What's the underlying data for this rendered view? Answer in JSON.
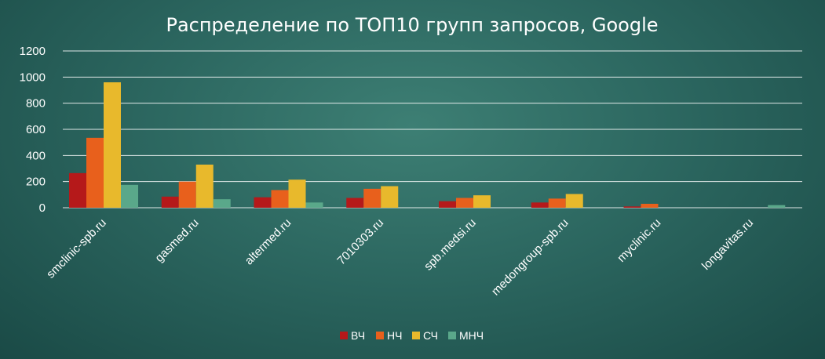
{
  "chart_data": {
    "type": "bar",
    "title": "Распределение по ТОП10 групп запросов, Google",
    "categories": [
      "smclinic-spb.ru",
      "gasmed.ru",
      "altermed.ru",
      "7010303.ru",
      "spb.medsi.ru",
      "medongroup-spb.ru",
      "myclinic.ru",
      "longavitas.ru"
    ],
    "series": [
      {
        "name": "ВЧ",
        "color": "#b5191a",
        "values": [
          265,
          85,
          80,
          75,
          50,
          40,
          10,
          0
        ]
      },
      {
        "name": "НЧ",
        "color": "#e8601c",
        "values": [
          535,
          200,
          135,
          145,
          75,
          70,
          30,
          0
        ]
      },
      {
        "name": "СЧ",
        "color": "#e8b92c",
        "values": [
          960,
          330,
          215,
          165,
          95,
          105,
          0,
          0
        ]
      },
      {
        "name": "МНЧ",
        "color": "#5aa88a",
        "values": [
          175,
          65,
          40,
          0,
          0,
          0,
          0,
          20
        ]
      }
    ],
    "yticks": [
      "0",
      "200",
      "400",
      "600",
      "800",
      "1000",
      "1200"
    ],
    "ylim": [
      0,
      1200
    ],
    "grid": true,
    "legend_position": "bottom"
  }
}
